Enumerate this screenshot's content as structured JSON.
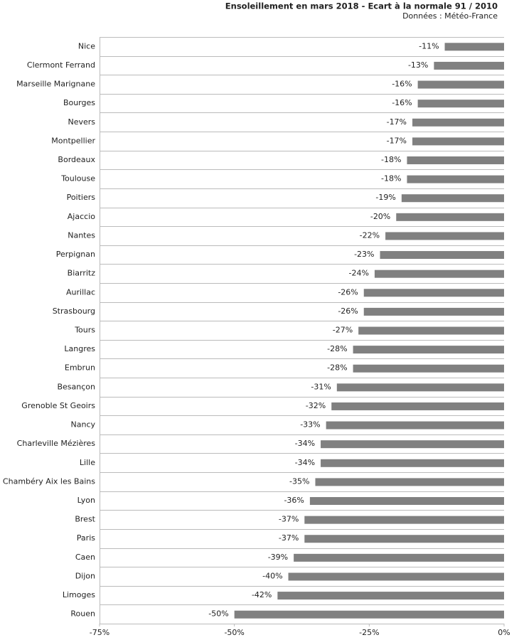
{
  "chart_data": {
    "type": "hbar",
    "title": "Ensoleillement en mars 2018 - Ecart à la normale 91 / 2010",
    "subtitle": "Données : Météo-France",
    "categories": [
      "Nice",
      "Clermont Ferrand",
      "Marseille Marignane",
      "Bourges",
      "Nevers",
      "Montpellier",
      "Bordeaux",
      "Toulouse",
      "Poitiers",
      "Ajaccio",
      "Nantes",
      "Perpignan",
      "Biarritz",
      "Aurillac",
      "Strasbourg",
      "Tours",
      "Langres",
      "Embrun",
      "Besançon",
      "Grenoble St Geoirs",
      "Nancy",
      "Charleville Mézières",
      "Lille",
      "Chambéry Aix les Bains",
      "Lyon",
      "Brest",
      "Paris",
      "Caen",
      "Dijon",
      "Limoges",
      "Rouen"
    ],
    "values": [
      -11,
      -13,
      -16,
      -16,
      -17,
      -17,
      -18,
      -18,
      -19,
      -20,
      -22,
      -23,
      -24,
      -26,
      -26,
      -27,
      -28,
      -28,
      -31,
      -32,
      -33,
      -34,
      -34,
      -35,
      -36,
      -37,
      -37,
      -39,
      -40,
      -42,
      -50
    ],
    "value_labels": [
      "-11%",
      "-13%",
      "-16%",
      "-16%",
      "-17%",
      "-17%",
      "-18%",
      "-18%",
      "-19%",
      "-20%",
      "-22%",
      "-23%",
      "-24%",
      "-26%",
      "-26%",
      "-27%",
      "-28%",
      "-28%",
      "-31%",
      "-32%",
      "-33%",
      "-34%",
      "-34%",
      "-35%",
      "-36%",
      "-37%",
      "-37%",
      "-39%",
      "-40%",
      "-42%",
      "-50%"
    ],
    "color": "#808080",
    "xlim": [
      -75,
      0
    ],
    "xticks": [
      {
        "value": -75,
        "label": "-75%"
      },
      {
        "value": -50,
        "label": "-50%"
      },
      {
        "value": -25,
        "label": "-25%"
      },
      {
        "value": 0,
        "label": "0%"
      }
    ]
  }
}
